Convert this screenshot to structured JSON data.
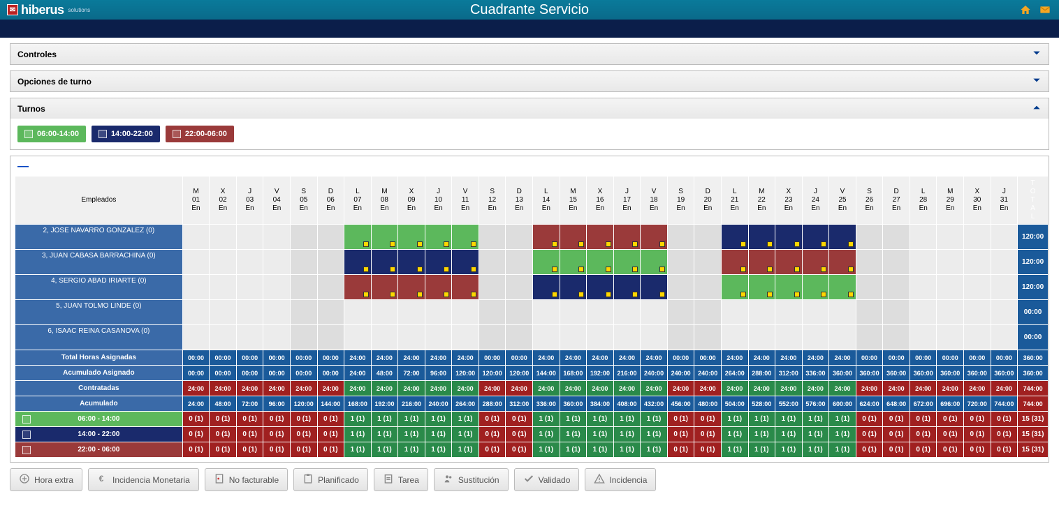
{
  "header": {
    "logo_text": "hiberus",
    "logo_sub": "solutions",
    "title": "Cuadrante Servicio"
  },
  "panels": {
    "controles": {
      "label": "Controles",
      "expanded": false
    },
    "opciones": {
      "label": "Opciones de turno",
      "expanded": false
    },
    "turnos": {
      "label": "Turnos",
      "expanded": true
    }
  },
  "shifts": [
    {
      "label": "06:00-14:00",
      "color": "#5cb85c"
    },
    {
      "label": "14:00-22:00",
      "color": "#1a2a6c"
    },
    {
      "label": "22:00-06:00",
      "color": "#9a3a3a"
    }
  ],
  "grid": {
    "emp_header": "Empleados",
    "total_header": "TOTAL",
    "days": [
      {
        "w": "M",
        "d": "01",
        "m": "En",
        "we": false
      },
      {
        "w": "X",
        "d": "02",
        "m": "En",
        "we": false
      },
      {
        "w": "J",
        "d": "03",
        "m": "En",
        "we": false
      },
      {
        "w": "V",
        "d": "04",
        "m": "En",
        "we": false
      },
      {
        "w": "S",
        "d": "05",
        "m": "En",
        "we": true
      },
      {
        "w": "D",
        "d": "06",
        "m": "En",
        "we": true
      },
      {
        "w": "L",
        "d": "07",
        "m": "En",
        "we": false
      },
      {
        "w": "M",
        "d": "08",
        "m": "En",
        "we": false
      },
      {
        "w": "X",
        "d": "09",
        "m": "En",
        "we": false
      },
      {
        "w": "J",
        "d": "10",
        "m": "En",
        "we": false
      },
      {
        "w": "V",
        "d": "11",
        "m": "En",
        "we": false
      },
      {
        "w": "S",
        "d": "12",
        "m": "En",
        "we": true
      },
      {
        "w": "D",
        "d": "13",
        "m": "En",
        "we": true
      },
      {
        "w": "L",
        "d": "14",
        "m": "En",
        "we": false
      },
      {
        "w": "M",
        "d": "15",
        "m": "En",
        "we": false
      },
      {
        "w": "X",
        "d": "16",
        "m": "En",
        "we": false
      },
      {
        "w": "J",
        "d": "17",
        "m": "En",
        "we": false
      },
      {
        "w": "V",
        "d": "18",
        "m": "En",
        "we": false
      },
      {
        "w": "S",
        "d": "19",
        "m": "En",
        "we": true
      },
      {
        "w": "D",
        "d": "20",
        "m": "En",
        "we": true
      },
      {
        "w": "L",
        "d": "21",
        "m": "En",
        "we": false
      },
      {
        "w": "M",
        "d": "22",
        "m": "En",
        "we": false
      },
      {
        "w": "X",
        "d": "23",
        "m": "En",
        "we": false
      },
      {
        "w": "J",
        "d": "24",
        "m": "En",
        "we": false
      },
      {
        "w": "V",
        "d": "25",
        "m": "En",
        "we": false
      },
      {
        "w": "S",
        "d": "26",
        "m": "En",
        "we": true
      },
      {
        "w": "D",
        "d": "27",
        "m": "En",
        "we": true
      },
      {
        "w": "L",
        "d": "28",
        "m": "En",
        "we": false
      },
      {
        "w": "M",
        "d": "29",
        "m": "En",
        "we": false
      },
      {
        "w": "X",
        "d": "30",
        "m": "En",
        "we": false
      },
      {
        "w": "J",
        "d": "31",
        "m": "En",
        "we": false
      }
    ],
    "employees": [
      {
        "name": "2, JOSE NAVARRO GONZALEZ (0)",
        "total": "120:00",
        "cells": [
          "",
          "",
          "",
          "",
          "",
          "",
          "g",
          "g",
          "g",
          "g",
          "g",
          "",
          "",
          "r",
          "r",
          "r",
          "r",
          "r",
          "",
          "",
          "b",
          "b",
          "b",
          "b",
          "b",
          "",
          "",
          "",
          "",
          "",
          ""
        ]
      },
      {
        "name": "3, JUAN CABASA BARRACHINA (0)",
        "total": "120:00",
        "cells": [
          "",
          "",
          "",
          "",
          "",
          "",
          "b",
          "b",
          "b",
          "b",
          "b",
          "",
          "",
          "g",
          "g",
          "g",
          "g",
          "g",
          "",
          "",
          "r",
          "r",
          "r",
          "r",
          "r",
          "",
          "",
          "",
          "",
          "",
          ""
        ]
      },
      {
        "name": "4, SERGIO ABAD IRIARTE (0)",
        "total": "120:00",
        "cells": [
          "",
          "",
          "",
          "",
          "",
          "",
          "r",
          "r",
          "r",
          "r",
          "r",
          "",
          "",
          "b",
          "b",
          "b",
          "b",
          "b",
          "",
          "",
          "g",
          "g",
          "g",
          "g",
          "g",
          "",
          "",
          "",
          "",
          "",
          ""
        ]
      },
      {
        "name": "5, JUAN TOLMO LINDE (0)",
        "total": "00:00",
        "cells": [
          "",
          "",
          "",
          "",
          "",
          "",
          "",
          "",
          "",
          "",
          "",
          "",
          "",
          "",
          "",
          "",
          "",
          "",
          "",
          "",
          "",
          "",
          "",
          "",
          "",
          "",
          "",
          "",
          "",
          "",
          ""
        ]
      },
      {
        "name": "6, ISAAC REINA CASANOVA (0)",
        "total": "00:00",
        "cells": [
          "",
          "",
          "",
          "",
          "",
          "",
          "",
          "",
          "",
          "",
          "",
          "",
          "",
          "",
          "",
          "",
          "",
          "",
          "",
          "",
          "",
          "",
          "",
          "",
          "",
          "",
          "",
          "",
          "",
          "",
          ""
        ]
      }
    ],
    "slot_colors": {
      "g": "#5cb85c",
      "b": "#1a2a6c",
      "r": "#9a3a3a"
    },
    "summary": [
      {
        "label": "Total Horas Asignadas",
        "total": "360:00",
        "total_bg": "#1a5a9a",
        "values": [
          "00:00",
          "00:00",
          "00:00",
          "00:00",
          "00:00",
          "00:00",
          "24:00",
          "24:00",
          "24:00",
          "24:00",
          "24:00",
          "00:00",
          "00:00",
          "24:00",
          "24:00",
          "24:00",
          "24:00",
          "24:00",
          "00:00",
          "00:00",
          "24:00",
          "24:00",
          "24:00",
          "24:00",
          "24:00",
          "00:00",
          "00:00",
          "00:00",
          "00:00",
          "00:00",
          "00:00"
        ],
        "bg": "#1a5a9a"
      },
      {
        "label": "Acumulado Asignado",
        "total": "360:00",
        "total_bg": "#1a5a9a",
        "values": [
          "00:00",
          "00:00",
          "00:00",
          "00:00",
          "00:00",
          "00:00",
          "24:00",
          "48:00",
          "72:00",
          "96:00",
          "120:00",
          "120:00",
          "120:00",
          "144:00",
          "168:00",
          "192:00",
          "216:00",
          "240:00",
          "240:00",
          "240:00",
          "264:00",
          "288:00",
          "312:00",
          "336:00",
          "360:00",
          "360:00",
          "360:00",
          "360:00",
          "360:00",
          "360:00",
          "360:00"
        ],
        "bg": "#1a5a9a"
      },
      {
        "label": "Contratadas",
        "total": "744:00",
        "total_bg": "#a02020",
        "values": [
          "24:00",
          "24:00",
          "24:00",
          "24:00",
          "24:00",
          "24:00",
          "24:00",
          "24:00",
          "24:00",
          "24:00",
          "24:00",
          "24:00",
          "24:00",
          "24:00",
          "24:00",
          "24:00",
          "24:00",
          "24:00",
          "24:00",
          "24:00",
          "24:00",
          "24:00",
          "24:00",
          "24:00",
          "24:00",
          "24:00",
          "24:00",
          "24:00",
          "24:00",
          "24:00",
          "24:00"
        ],
        "colors": [
          "#a02020",
          "#a02020",
          "#a02020",
          "#a02020",
          "#a02020",
          "#a02020",
          "#2a8a4a",
          "#2a8a4a",
          "#2a8a4a",
          "#2a8a4a",
          "#2a8a4a",
          "#a02020",
          "#a02020",
          "#2a8a4a",
          "#2a8a4a",
          "#2a8a4a",
          "#2a8a4a",
          "#2a8a4a",
          "#a02020",
          "#a02020",
          "#2a8a4a",
          "#2a8a4a",
          "#2a8a4a",
          "#2a8a4a",
          "#2a8a4a",
          "#a02020",
          "#a02020",
          "#a02020",
          "#a02020",
          "#a02020",
          "#a02020"
        ]
      },
      {
        "label": "Acumulado",
        "total": "744:00",
        "total_bg": "#a02020",
        "values": [
          "24:00",
          "48:00",
          "72:00",
          "96:00",
          "120:00",
          "144:00",
          "168:00",
          "192:00",
          "216:00",
          "240:00",
          "264:00",
          "288:00",
          "312:00",
          "336:00",
          "360:00",
          "384:00",
          "408:00",
          "432:00",
          "456:00",
          "480:00",
          "504:00",
          "528:00",
          "552:00",
          "576:00",
          "600:00",
          "624:00",
          "648:00",
          "672:00",
          "696:00",
          "720:00",
          "744:00"
        ],
        "bg": "#1a5a9a"
      }
    ],
    "shift_rows": [
      {
        "label": "06:00 - 14:00",
        "label_bg": "#5cb85c",
        "total": "15 (31)",
        "values": [
          "0 (1)",
          "0 (1)",
          "0 (1)",
          "0 (1)",
          "0 (1)",
          "0 (1)",
          "1 (1)",
          "1 (1)",
          "1 (1)",
          "1 (1)",
          "1 (1)",
          "0 (1)",
          "0 (1)",
          "1 (1)",
          "1 (1)",
          "1 (1)",
          "1 (1)",
          "1 (1)",
          "0 (1)",
          "0 (1)",
          "1 (1)",
          "1 (1)",
          "1 (1)",
          "1 (1)",
          "1 (1)",
          "0 (1)",
          "0 (1)",
          "0 (1)",
          "0 (1)",
          "0 (1)",
          "0 (1)"
        ],
        "colors": [
          "#a02020",
          "#a02020",
          "#a02020",
          "#a02020",
          "#a02020",
          "#a02020",
          "#2a8a4a",
          "#2a8a4a",
          "#2a8a4a",
          "#2a8a4a",
          "#2a8a4a",
          "#a02020",
          "#a02020",
          "#2a8a4a",
          "#2a8a4a",
          "#2a8a4a",
          "#2a8a4a",
          "#2a8a4a",
          "#a02020",
          "#a02020",
          "#2a8a4a",
          "#2a8a4a",
          "#2a8a4a",
          "#2a8a4a",
          "#2a8a4a",
          "#a02020",
          "#a02020",
          "#a02020",
          "#a02020",
          "#a02020",
          "#a02020"
        ]
      },
      {
        "label": "14:00 - 22:00",
        "label_bg": "#1a2a6c",
        "total": "15 (31)",
        "values": [
          "0 (1)",
          "0 (1)",
          "0 (1)",
          "0 (1)",
          "0 (1)",
          "0 (1)",
          "1 (1)",
          "1 (1)",
          "1 (1)",
          "1 (1)",
          "1 (1)",
          "0 (1)",
          "0 (1)",
          "1 (1)",
          "1 (1)",
          "1 (1)",
          "1 (1)",
          "1 (1)",
          "0 (1)",
          "0 (1)",
          "1 (1)",
          "1 (1)",
          "1 (1)",
          "1 (1)",
          "1 (1)",
          "0 (1)",
          "0 (1)",
          "0 (1)",
          "0 (1)",
          "0 (1)",
          "0 (1)"
        ],
        "colors": [
          "#a02020",
          "#a02020",
          "#a02020",
          "#a02020",
          "#a02020",
          "#a02020",
          "#2a8a4a",
          "#2a8a4a",
          "#2a8a4a",
          "#2a8a4a",
          "#2a8a4a",
          "#a02020",
          "#a02020",
          "#2a8a4a",
          "#2a8a4a",
          "#2a8a4a",
          "#2a8a4a",
          "#2a8a4a",
          "#a02020",
          "#a02020",
          "#2a8a4a",
          "#2a8a4a",
          "#2a8a4a",
          "#2a8a4a",
          "#2a8a4a",
          "#a02020",
          "#a02020",
          "#a02020",
          "#a02020",
          "#a02020",
          "#a02020"
        ]
      },
      {
        "label": "22:00 - 06:00",
        "label_bg": "#9a3a3a",
        "total": "15 (31)",
        "values": [
          "0 (1)",
          "0 (1)",
          "0 (1)",
          "0 (1)",
          "0 (1)",
          "0 (1)",
          "1 (1)",
          "1 (1)",
          "1 (1)",
          "1 (1)",
          "1 (1)",
          "0 (1)",
          "0 (1)",
          "1 (1)",
          "1 (1)",
          "1 (1)",
          "1 (1)",
          "1 (1)",
          "0 (1)",
          "0 (1)",
          "1 (1)",
          "1 (1)",
          "1 (1)",
          "1 (1)",
          "1 (1)",
          "0 (1)",
          "0 (1)",
          "0 (1)",
          "0 (1)",
          "0 (1)",
          "0 (1)"
        ],
        "colors": [
          "#a02020",
          "#a02020",
          "#a02020",
          "#a02020",
          "#a02020",
          "#a02020",
          "#2a8a4a",
          "#2a8a4a",
          "#2a8a4a",
          "#2a8a4a",
          "#2a8a4a",
          "#a02020",
          "#a02020",
          "#2a8a4a",
          "#2a8a4a",
          "#2a8a4a",
          "#2a8a4a",
          "#2a8a4a",
          "#a02020",
          "#a02020",
          "#2a8a4a",
          "#2a8a4a",
          "#2a8a4a",
          "#2a8a4a",
          "#2a8a4a",
          "#a02020",
          "#a02020",
          "#a02020",
          "#a02020",
          "#a02020",
          "#a02020"
        ]
      }
    ]
  },
  "buttons": [
    {
      "label": "Hora extra",
      "icon": "plus"
    },
    {
      "label": "Incidencia Monetaria",
      "icon": "euro"
    },
    {
      "label": "No facturable",
      "icon": "doc"
    },
    {
      "label": "Planificado",
      "icon": "clipboard"
    },
    {
      "label": "Tarea",
      "icon": "task"
    },
    {
      "label": "Sustitución",
      "icon": "people"
    },
    {
      "label": "Validado",
      "icon": "check"
    },
    {
      "label": "Incidencia",
      "icon": "warn"
    }
  ]
}
